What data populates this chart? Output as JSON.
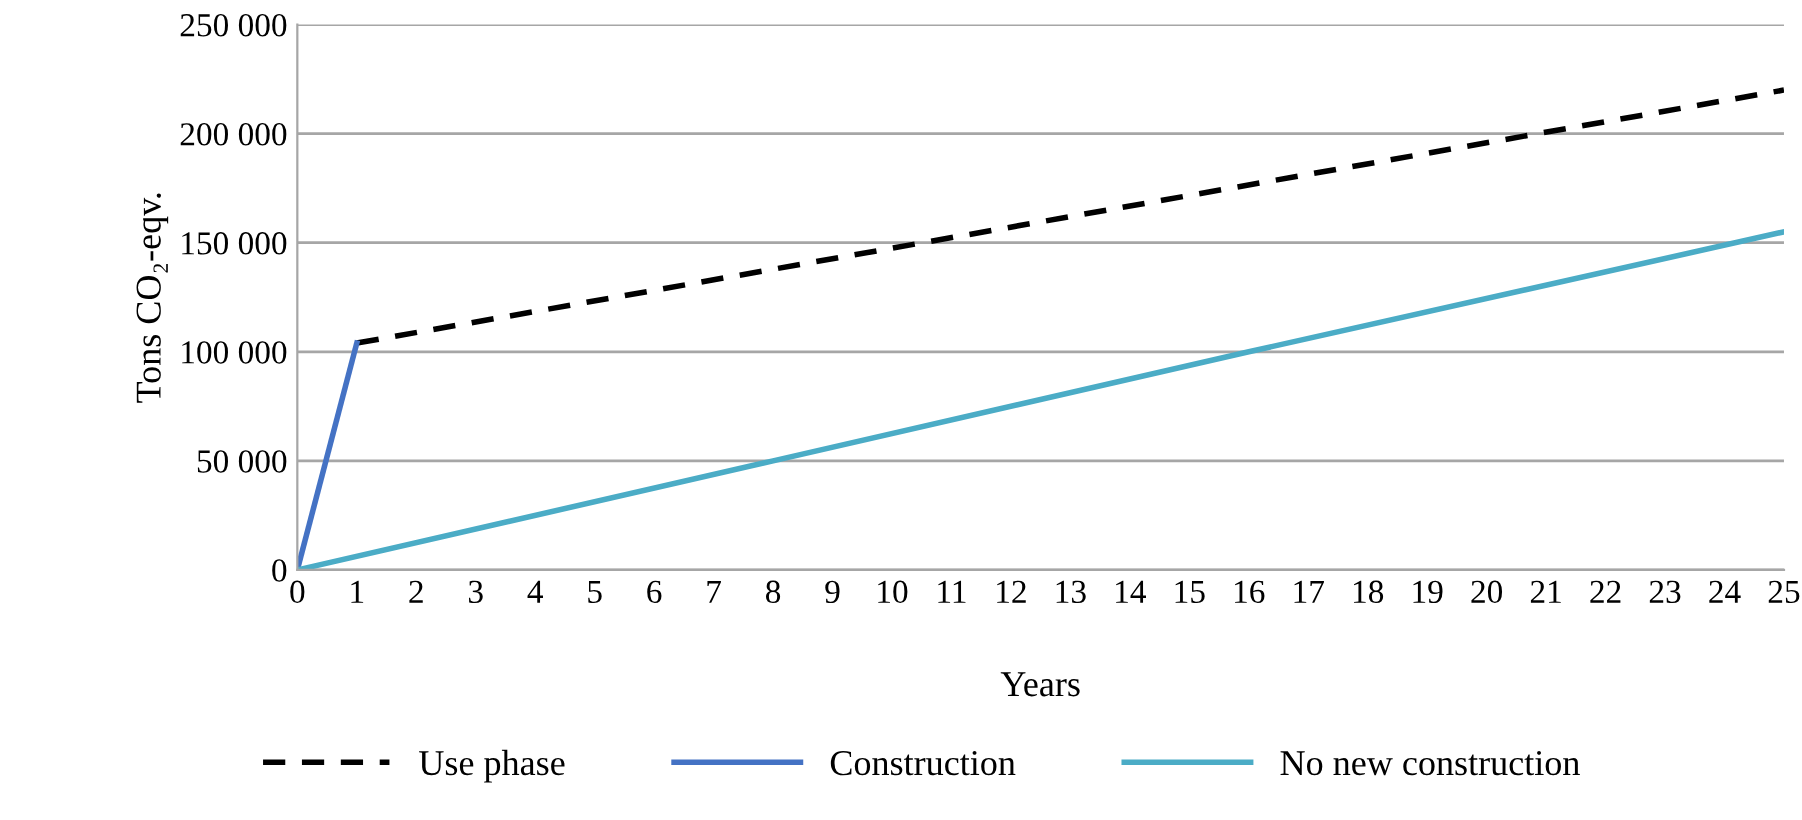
{
  "chart_data": {
    "type": "line",
    "xlabel": "Years",
    "ylabel": "Tons CO₂-eqv.",
    "xlim": [
      0,
      25
    ],
    "xticks": [
      0,
      1,
      2,
      3,
      4,
      5,
      6,
      7,
      8,
      9,
      10,
      11,
      12,
      13,
      14,
      15,
      16,
      17,
      18,
      19,
      20,
      21,
      22,
      23,
      24,
      25
    ],
    "ylim": [
      0,
      250000
    ],
    "yticks": [
      {
        "value": 0,
        "label": "0"
      },
      {
        "value": 50000,
        "label": "50 000"
      },
      {
        "value": 100000,
        "label": "100 000"
      },
      {
        "value": 150000,
        "label": "150 000"
      },
      {
        "value": 200000,
        "label": "200 000"
      },
      {
        "value": 250000,
        "label": "250 000"
      }
    ],
    "grid": "y",
    "legend": "bottom",
    "marker": "none",
    "series": [
      {
        "name": "Use phase",
        "color": "#000000",
        "line_style": "dashed",
        "x": [
          1,
          25
        ],
        "values": [
          104000,
          220000
        ]
      },
      {
        "name": "Construction",
        "color": "#4472c4",
        "line_style": "solid",
        "x": [
          0,
          1
        ],
        "values": [
          0,
          104000
        ]
      },
      {
        "name": "No new construction",
        "color": "#4bacc6",
        "line_style": "solid",
        "x": [
          0,
          8,
          16,
          25
        ],
        "values": [
          0,
          50000,
          100000,
          155000
        ]
      }
    ]
  }
}
